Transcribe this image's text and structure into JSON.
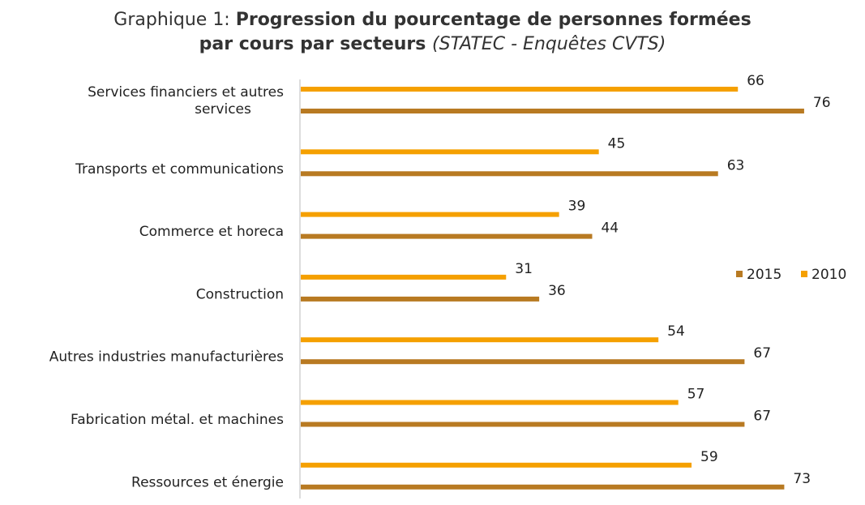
{
  "chart_data": {
    "type": "bar",
    "orientation": "horizontal",
    "title": {
      "prefix": "Graphique 1: ",
      "line1_bold": "Progression du pourcentage de personnes formées",
      "line2_bold": "par cours par secteurs ",
      "source": "(STATEC - Enquêtes CVTS)"
    },
    "categories": [
      [
        "Services financiers et autres",
        "services"
      ],
      [
        "Transports et communications"
      ],
      [
        "Commerce et horeca"
      ],
      [
        "Construction"
      ],
      [
        "Autres industries manufacturières"
      ],
      [
        "Fabrication métal. et machines"
      ],
      [
        "Ressources et énergie"
      ]
    ],
    "series": [
      {
        "name": "2010",
        "color": "#F5A000",
        "values": [
          66,
          45,
          39,
          31,
          54,
          57,
          59
        ]
      },
      {
        "name": "2015",
        "color": "#B87A22",
        "values": [
          76,
          63,
          44,
          36,
          67,
          67,
          73
        ]
      }
    ],
    "legend": {
      "position": "right",
      "order": [
        "2015",
        "2010"
      ]
    },
    "xlim": [
      0,
      80
    ],
    "axis_line_color": "#BBBBBB",
    "grid": false
  }
}
